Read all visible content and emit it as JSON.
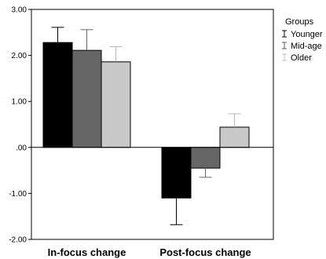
{
  "chart_data": {
    "type": "bar",
    "categories": [
      "In-focus change",
      "Post-focus change"
    ],
    "series": [
      {
        "name": "Younger",
        "color": "#000000",
        "values": [
          2.28,
          -1.1
        ],
        "error": [
          0.33,
          0.58
        ]
      },
      {
        "name": "Mid-age",
        "color": "#666666",
        "values": [
          2.11,
          -0.45
        ],
        "error": [
          0.45,
          0.2
        ]
      },
      {
        "name": "Older",
        "color": "#c8c8c8",
        "values": [
          1.86,
          0.44
        ],
        "error": [
          0.33,
          0.29
        ]
      }
    ],
    "ylim": [
      -2.0,
      3.0
    ],
    "yticks": [
      -2.0,
      -1.0,
      0.0,
      1.0,
      2.0,
      3.0
    ],
    "ytick_labels": [
      "-2.00",
      "-1.00",
      ".00",
      "1.00",
      "2.00",
      "3.00"
    ],
    "legend": {
      "title": "Groups",
      "position": "top-right outside"
    },
    "grid": false,
    "error_bars": "upper-only for positive, lower-only for negative"
  }
}
